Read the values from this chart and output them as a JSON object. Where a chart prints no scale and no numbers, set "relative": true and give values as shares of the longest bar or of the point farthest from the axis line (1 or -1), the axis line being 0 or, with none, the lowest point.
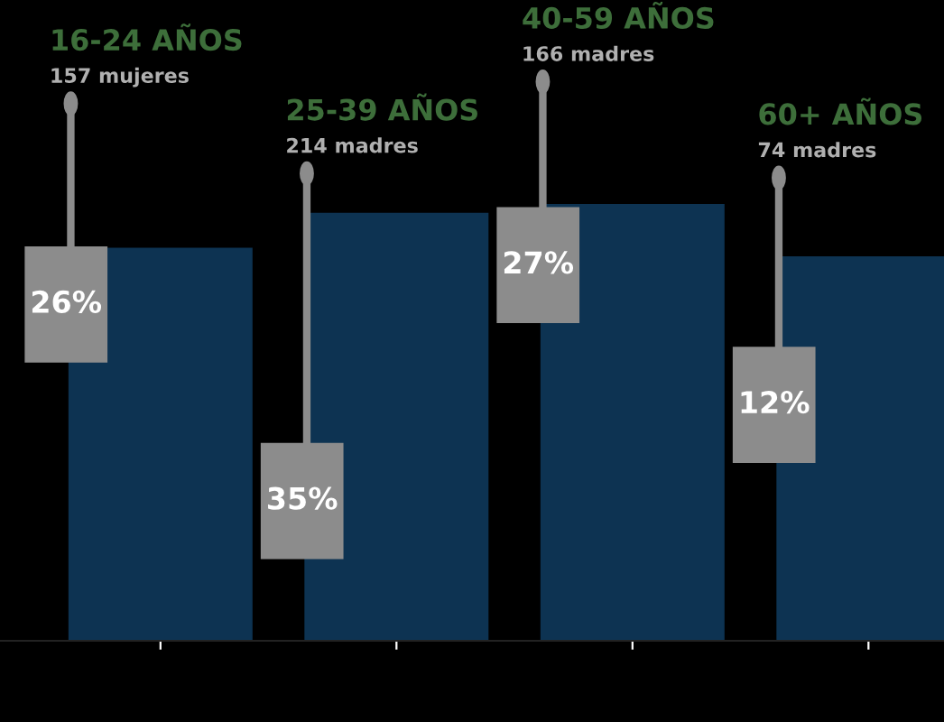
{
  "chart_data": {
    "type": "bar",
    "relative": true,
    "categories": [
      null,
      null,
      null,
      null
    ],
    "values": [
      0.9,
      0.98,
      1,
      0.88
    ],
    "color": "#0d3352",
    "annotations": [
      "16-24 AÑOS",
      "157 mujeres",
      "26%",
      "25-39 AÑOS",
      "214 madres",
      "35%",
      "40-59 AÑOS",
      "166 madres",
      "27%",
      "60+ AÑOS",
      "74 madres",
      "12%"
    ]
  }
}
